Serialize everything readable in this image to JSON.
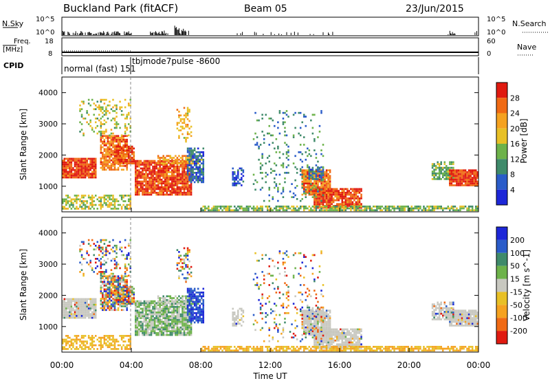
{
  "header": {
    "title": "Buckland Park (fitACF)",
    "beam": "Beam 05",
    "date": "23/Jun/2015"
  },
  "strip_labels": {
    "nsky": "N.Sky",
    "nsky_ticks": [
      "10^5",
      "10^0"
    ],
    "nsearch": "N.Search",
    "freq_line1": "Freq.",
    "freq_line2": "[MHz]",
    "freq_ticks": [
      "18",
      "8"
    ],
    "nave": "Nave",
    "nave_ticks": [
      "60",
      "0"
    ],
    "cpid": "CPID",
    "cpid_mode1": "normal (fast) 151",
    "cpid_mode2": "tbjmode7pulse -8600"
  },
  "chart_data": [
    {
      "type": "heatmap",
      "title": "",
      "ylabel": "Slant Range [km]",
      "xlabel": "",
      "ylim": [
        180,
        4500
      ],
      "yticks": [
        "1000",
        "2000",
        "3000",
        "4000"
      ],
      "colorbar_label": "Power [dB]",
      "colorbar_ticks": [
        "4",
        "8",
        "12",
        "16",
        "20",
        "24",
        "28"
      ],
      "colors": [
        "#1d27d8",
        "#2a5cc9",
        "#3f8a6a",
        "#6db24a",
        "#e8c026",
        "#f5a220",
        "#f06a14",
        "#e01a10"
      ],
      "note_regions": [
        {
          "t0": 0.0,
          "t1": 2.0,
          "r0": 1300,
          "r1": 1900,
          "level": "high"
        },
        {
          "t0": 2.3,
          "t1": 7.8,
          "r0": 700,
          "r1": 2600,
          "level": "high"
        },
        {
          "t0": 13.8,
          "t1": 17.3,
          "r0": 300,
          "r1": 1600,
          "level": "high"
        },
        {
          "t0": 21.3,
          "t1": 24.0,
          "r0": 1000,
          "r1": 1800,
          "level": "high"
        }
      ]
    },
    {
      "type": "heatmap",
      "title": "",
      "ylabel": "Slant Range [km]",
      "xlabel": "Time UT",
      "ylim": [
        180,
        4500
      ],
      "yticks": [
        "1000",
        "2000",
        "3000",
        "4000"
      ],
      "xticks": [
        "00:00",
        "04:00",
        "08:00",
        "12:00",
        "16:00",
        "20:00",
        "00:00"
      ],
      "colorbar_label": "Velocity [m s^-1]",
      "colorbar_ticks": [
        "200",
        "100",
        "50",
        "15",
        "-15",
        "-50",
        "-100",
        "-200"
      ],
      "colors": [
        "#1d27d8",
        "#2a5cc9",
        "#3f8a6a",
        "#6db24a",
        "#c8c8c0",
        "#e8c026",
        "#f5a220",
        "#f06a14",
        "#e01a10"
      ]
    }
  ]
}
